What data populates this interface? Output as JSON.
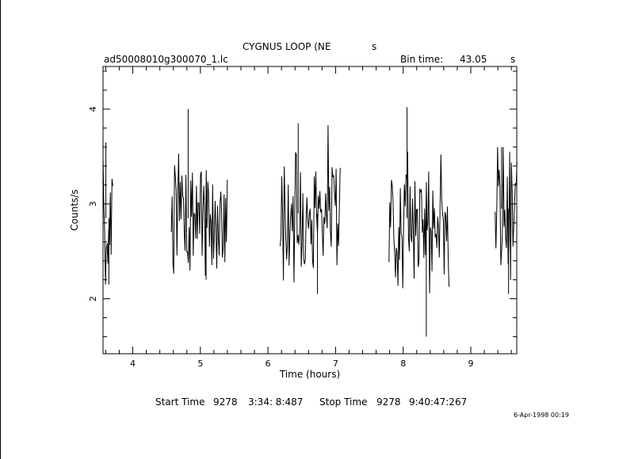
{
  "header": {
    "title": "CYGNUS LOOP (NE",
    "title_suffix": "s",
    "filename": "ad50008010g300070_1.lc",
    "bin_time_label": "Bin time:",
    "bin_time_value": "43.05",
    "bin_time_unit": "s"
  },
  "footer": {
    "start_label": "Start Time",
    "start_day": "9278",
    "start_time": "3:34: 8:487",
    "stop_label": "Stop Time",
    "stop_day": "9278",
    "stop_time": "9:40:47:267",
    "stamp": "6-Apr-1998 00:19"
  },
  "chart_data": {
    "type": "line",
    "title": "CYGNUS LOOP (NE",
    "xlabel": "Time (hours)",
    "ylabel": "Counts/s",
    "xlim": [
      3.56,
      9.68
    ],
    "ylim": [
      1.42,
      4.45
    ],
    "xticks": [
      4,
      5,
      6,
      7,
      8,
      9
    ],
    "yticks": [
      2,
      3,
      4
    ],
    "grid": false,
    "line_color": "#000000",
    "segments": [
      {
        "x_start": 3.56,
        "x_end": 3.7,
        "mean": 2.85,
        "step": 0.012,
        "min": 2.15,
        "max": 3.65
      },
      {
        "x_start": 4.57,
        "x_end": 5.4,
        "mean": 2.85,
        "step": 0.012,
        "min": 2.2,
        "max": 4.0
      },
      {
        "x_start": 6.18,
        "x_end": 7.07,
        "mean": 2.9,
        "step": 0.012,
        "min": 2.05,
        "max": 3.85
      },
      {
        "x_start": 7.79,
        "x_end": 8.68,
        "mean": 2.85,
        "step": 0.012,
        "min": 1.6,
        "max": 4.02
      },
      {
        "x_start": 9.36,
        "x_end": 9.68,
        "mean": 2.95,
        "step": 0.012,
        "min": 2.05,
        "max": 3.6
      }
    ]
  }
}
